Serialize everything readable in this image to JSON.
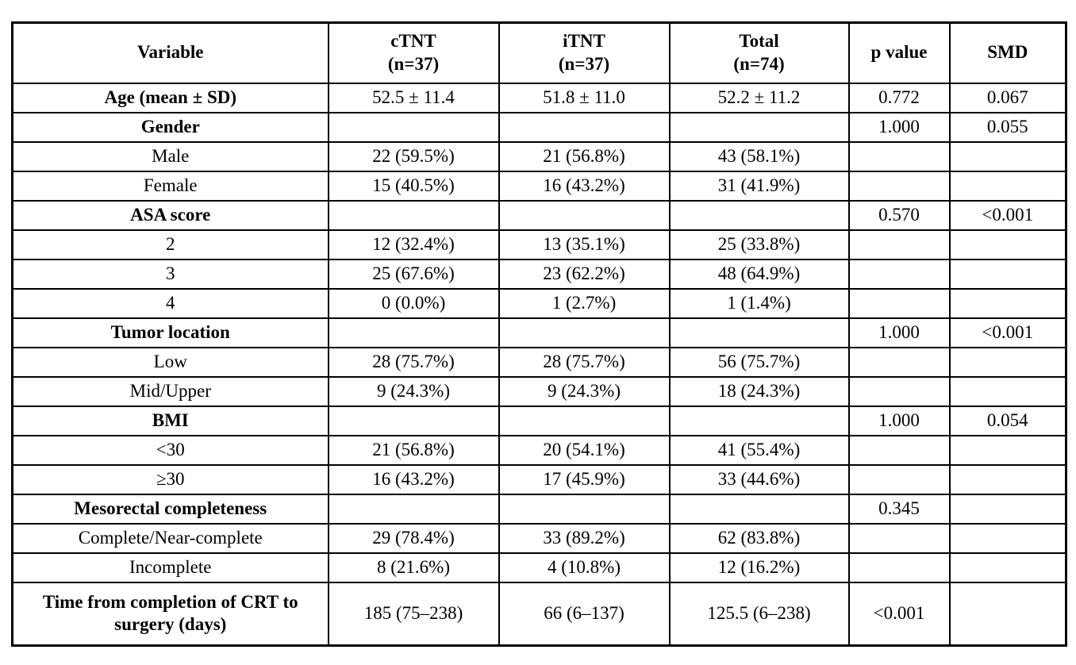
{
  "table": {
    "headers": [
      "Variable",
      "cTNT\n(n=37)",
      "iTNT\n(n=37)",
      "Total\n(n=74)",
      "p value",
      "SMD"
    ],
    "rows": [
      {
        "variable": "Age (mean ± SD)",
        "ctnt": "52.5 ± 11.4",
        "itnt": "51.8 ± 11.0",
        "total": "52.2 ± 11.2",
        "p": "0.772",
        "smd": "0.067"
      },
      {
        "variable": "Gender",
        "ctnt": "",
        "itnt": "",
        "total": "",
        "p": "1.000",
        "smd": "0.055"
      },
      {
        "variable": "Male",
        "ctnt": "22 (59.5%)",
        "itnt": "21 (56.8%)",
        "total": "43 (58.1%)",
        "p": "",
        "smd": ""
      },
      {
        "variable": "Female",
        "ctnt": "15 (40.5%)",
        "itnt": "16 (43.2%)",
        "total": "31 (41.9%)",
        "p": "",
        "smd": ""
      },
      {
        "variable": "ASA score",
        "ctnt": "",
        "itnt": "",
        "total": "",
        "p": "0.570",
        "smd": "<0.001"
      },
      {
        "variable": "2",
        "ctnt": "12 (32.4%)",
        "itnt": "13 (35.1%)",
        "total": "25 (33.8%)",
        "p": "",
        "smd": ""
      },
      {
        "variable": "3",
        "ctnt": "25 (67.6%)",
        "itnt": "23 (62.2%)",
        "total": "48 (64.9%)",
        "p": "",
        "smd": ""
      },
      {
        "variable": "4",
        "ctnt": "0 (0.0%)",
        "itnt": "1 (2.7%)",
        "total": "1 (1.4%)",
        "p": "",
        "smd": ""
      },
      {
        "variable": "Tumor location",
        "ctnt": "",
        "itnt": "",
        "total": "",
        "p": "1.000",
        "smd": "<0.001"
      },
      {
        "variable": "Low",
        "ctnt": "28 (75.7%)",
        "itnt": "28 (75.7%)",
        "total": "56 (75.7%)",
        "p": "",
        "smd": ""
      },
      {
        "variable": "Mid/Upper",
        "ctnt": "9 (24.3%)",
        "itnt": "9 (24.3%)",
        "total": "18 (24.3%)",
        "p": "",
        "smd": ""
      },
      {
        "variable": "BMI",
        "ctnt": "",
        "itnt": "",
        "total": "",
        "p": "1.000",
        "smd": "0.054"
      },
      {
        "variable": "<30",
        "ctnt": "21 (56.8%)",
        "itnt": "20 (54.1%)",
        "total": "41 (55.4%)",
        "p": "",
        "smd": ""
      },
      {
        "variable": "≥30",
        "ctnt": "16 (43.2%)",
        "itnt": "17 (45.9%)",
        "total": "33 (44.6%)",
        "p": "",
        "smd": ""
      },
      {
        "variable": "Mesorectal completeness",
        "ctnt": "",
        "itnt": "",
        "total": "",
        "p": "0.345",
        "smd": ""
      },
      {
        "variable": "Complete/Near-complete",
        "ctnt": "29 (78.4%)",
        "itnt": "33 (89.2%)",
        "total": "62 (83.8%)",
        "p": "",
        "smd": ""
      },
      {
        "variable": "Incomplete",
        "ctnt": "8 (21.6%)",
        "itnt": "4 (10.8%)",
        "total": "12 (16.2%)",
        "p": "",
        "smd": ""
      },
      {
        "variable": "Time from completion of CRT to surgery (days)",
        "ctnt": "185 (75–238)",
        "itnt": "66 (6–137)",
        "total": "125.5 (6–238)",
        "p": "<0.001",
        "smd": ""
      }
    ]
  }
}
